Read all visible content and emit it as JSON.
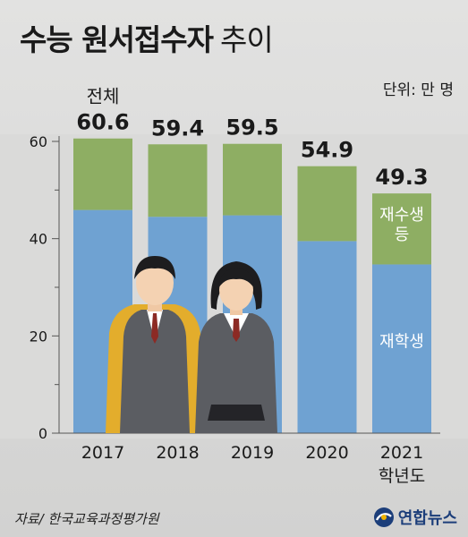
{
  "title": {
    "main": "수능 원서접수자",
    "sub": "추이"
  },
  "unit_label": "단위: 만 명",
  "source": "자료/ 한국교육과정평가원",
  "publisher": "연합뉴스",
  "colors": {
    "enrolled": "#6fa2d2",
    "repeaters": "#8eae63",
    "background": "#dadad9",
    "axis": "#555555"
  },
  "chart_data": {
    "type": "bar",
    "stacked": true,
    "categories": [
      "2017",
      "2018",
      "2019",
      "2020",
      "2021"
    ],
    "x_suffix": "학년도",
    "ylim": [
      0,
      60
    ],
    "yticks": [
      0,
      20,
      40,
      60
    ],
    "grid": false,
    "series": [
      {
        "name": "재학생",
        "values": [
          45.9,
          44.5,
          44.8,
          39.5,
          34.7
        ]
      },
      {
        "name": "재수생 등",
        "values": [
          14.7,
          14.9,
          14.7,
          15.4,
          14.6
        ]
      }
    ],
    "totals": [
      "60.6",
      "59.4",
      "59.5",
      "54.9",
      "49.3"
    ],
    "total_label": "전체"
  }
}
